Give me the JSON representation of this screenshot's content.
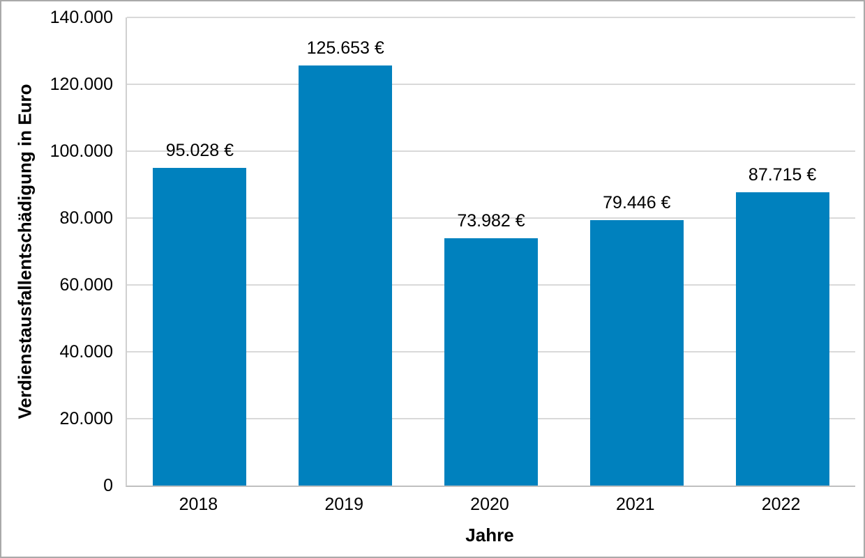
{
  "chart_data": {
    "type": "bar",
    "title": "",
    "categories": [
      "2018",
      "2019",
      "2020",
      "2021",
      "2022"
    ],
    "values": [
      95028,
      125653,
      73982,
      79446,
      87715
    ],
    "bar_labels": [
      "95.028 €",
      "125.653 €",
      "73.982 €",
      "79.446 €",
      "87.715 €"
    ],
    "xlabel": "Jahre",
    "ylabel": "Verdienstausfallentschädigung in Euro",
    "ylim": [
      0,
      140000
    ],
    "ytick_step": 20000,
    "ytick_labels": [
      "0",
      "20.000",
      "40.000",
      "60.000",
      "80.000",
      "100.000",
      "120.000",
      "140.000"
    ],
    "grid": "horizontal",
    "legend_position": "none",
    "colors": {
      "bar": "#0081BE",
      "gridline": "#d9d9d9",
      "axis_line": "#bfbfbf",
      "text": "#000000"
    }
  }
}
